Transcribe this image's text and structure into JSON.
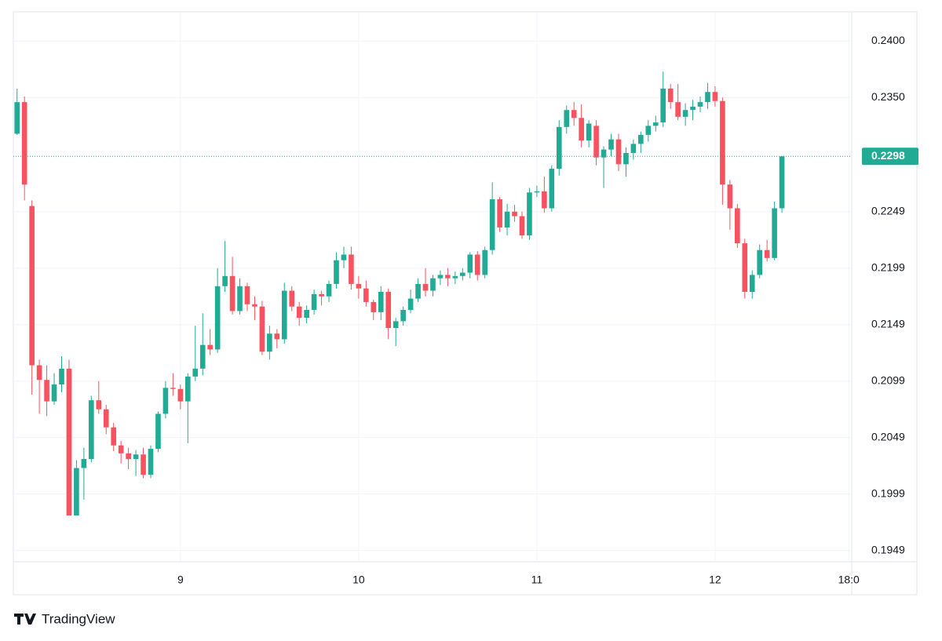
{
  "chart_data": {
    "type": "candlestick",
    "x": [
      2,
      3,
      4,
      5,
      6,
      7,
      8,
      9,
      10,
      11,
      12,
      13,
      14,
      15,
      16,
      17,
      18,
      19,
      20,
      21,
      22,
      23,
      24,
      25,
      26,
      27,
      28,
      29,
      30,
      31,
      32,
      33,
      34,
      35,
      36,
      37,
      38,
      39,
      40,
      41,
      42,
      43,
      44,
      45,
      46,
      47,
      48,
      49,
      50,
      51,
      52,
      53,
      54,
      55,
      56,
      57,
      58,
      59,
      60,
      61,
      62,
      63,
      64,
      65,
      66,
      67,
      68,
      69,
      70,
      71,
      72,
      73,
      74,
      75,
      76,
      77,
      78,
      79,
      80,
      81,
      82,
      83,
      84,
      85,
      86,
      87,
      88,
      89,
      90,
      91,
      92,
      93,
      94,
      95,
      96,
      97,
      98,
      99,
      100,
      101,
      102,
      103,
      104,
      105
    ],
    "open": [
      0.2318,
      0.2346,
      0.2254,
      0.2113,
      0.21,
      0.2081,
      0.2096,
      0.211,
      0.198,
      0.2022,
      0.203,
      0.2082,
      0.2074,
      0.2058,
      0.2042,
      0.2035,
      0.203,
      0.2034,
      0.2016,
      0.2039,
      0.207,
      0.2093,
      0.2092,
      0.2081,
      0.2103,
      0.211,
      0.2131,
      0.2127,
      0.2183,
      0.2192,
      0.2161,
      0.2183,
      0.2167,
      0.2165,
      0.2125,
      0.2141,
      0.2136,
      0.2179,
      0.2165,
      0.2155,
      0.2162,
      0.2176,
      0.2174,
      0.2185,
      0.2206,
      0.2211,
      0.2185,
      0.2181,
      0.2169,
      0.216,
      0.2178,
      0.2146,
      0.2152,
      0.2162,
      0.2172,
      0.2185,
      0.2179,
      0.219,
      0.2193,
      0.219,
      0.2192,
      0.2195,
      0.2211,
      0.2193,
      0.2215,
      0.226,
      0.2235,
      0.2249,
      0.2245,
      0.2228,
      0.2266,
      0.2267,
      0.2252,
      0.2287,
      0.2324,
      0.2339,
      0.2332,
      0.2312,
      0.2325,
      0.2297,
      0.2304,
      0.2313,
      0.2291,
      0.2301,
      0.2309,
      0.2317,
      0.2325,
      0.2328,
      0.2358,
      0.2346,
      0.2333,
      0.2339,
      0.2342,
      0.2346,
      0.2355,
      0.2347,
      0.2273,
      0.2252,
      0.2221,
      0.2178,
      0.2193,
      0.2215,
      0.2208,
      0.2252
    ],
    "high": [
      0.2358,
      0.2351,
      0.2259,
      0.2118,
      0.2113,
      0.2106,
      0.2121,
      0.2118,
      0.2029,
      0.204,
      0.2086,
      0.2099,
      0.2078,
      0.2062,
      0.2046,
      0.204,
      0.2038,
      0.204,
      0.2042,
      0.2072,
      0.2099,
      0.2106,
      0.2096,
      0.2106,
      0.2148,
      0.2159,
      0.2145,
      0.2199,
      0.2223,
      0.2209,
      0.219,
      0.2186,
      0.2174,
      0.217,
      0.2148,
      0.2145,
      0.2186,
      0.2183,
      0.2169,
      0.2166,
      0.218,
      0.2179,
      0.2188,
      0.2213,
      0.2218,
      0.2218,
      0.2192,
      0.2188,
      0.2171,
      0.2183,
      0.2181,
      0.2155,
      0.2165,
      0.218,
      0.219,
      0.2199,
      0.2193,
      0.2197,
      0.2199,
      0.2196,
      0.2199,
      0.2213,
      0.2214,
      0.2218,
      0.2275,
      0.2262,
      0.2256,
      0.2255,
      0.2249,
      0.227,
      0.2272,
      0.228,
      0.229,
      0.233,
      0.2343,
      0.2346,
      0.2344,
      0.233,
      0.233,
      0.2307,
      0.2318,
      0.2318,
      0.2306,
      0.2313,
      0.232,
      0.233,
      0.2334,
      0.2373,
      0.2362,
      0.2362,
      0.2345,
      0.2348,
      0.2351,
      0.2363,
      0.236,
      0.235,
      0.2277,
      0.2256,
      0.2225,
      0.2197,
      0.222,
      0.2224,
      0.2258,
      0.2298
    ],
    "low": [
      0.2317,
      0.2259,
      0.2087,
      0.207,
      0.2068,
      0.2078,
      0.2089,
      0.198,
      0.198,
      0.1994,
      0.2027,
      0.207,
      0.2052,
      0.2037,
      0.2026,
      0.2021,
      0.2015,
      0.2013,
      0.2013,
      0.2036,
      0.2066,
      0.2086,
      0.2074,
      0.2044,
      0.2099,
      0.2104,
      0.2122,
      0.2124,
      0.2178,
      0.2158,
      0.2158,
      0.2161,
      0.2153,
      0.2122,
      0.2118,
      0.2128,
      0.2132,
      0.2161,
      0.2148,
      0.215,
      0.2158,
      0.2166,
      0.2169,
      0.2181,
      0.2199,
      0.218,
      0.2172,
      0.2165,
      0.2153,
      0.2153,
      0.2136,
      0.213,
      0.2148,
      0.2159,
      0.2169,
      0.2174,
      0.2174,
      0.2184,
      0.2183,
      0.2185,
      0.2188,
      0.219,
      0.2188,
      0.219,
      0.2211,
      0.2231,
      0.2228,
      0.224,
      0.2225,
      0.2224,
      0.2262,
      0.2248,
      0.2249,
      0.2281,
      0.2318,
      0.2325,
      0.2306,
      0.2306,
      0.229,
      0.227,
      0.2298,
      0.2285,
      0.228,
      0.2295,
      0.2301,
      0.2311,
      0.232,
      0.2324,
      0.234,
      0.233,
      0.2325,
      0.233,
      0.2337,
      0.234,
      0.2342,
      0.2255,
      0.2233,
      0.2217,
      0.2172,
      0.2172,
      0.219,
      0.2205,
      0.2206,
      0.2248
    ],
    "close": [
      0.2346,
      0.2273,
      0.2113,
      0.21,
      0.2081,
      0.2096,
      0.211,
      0.198,
      0.2022,
      0.203,
      0.2082,
      0.2074,
      0.2058,
      0.2042,
      0.2035,
      0.203,
      0.2034,
      0.2016,
      0.2039,
      0.207,
      0.2093,
      0.2092,
      0.2081,
      0.2103,
      0.211,
      0.2131,
      0.2127,
      0.2183,
      0.2192,
      0.2161,
      0.2183,
      0.2167,
      0.2165,
      0.2125,
      0.2141,
      0.2136,
      0.2179,
      0.2165,
      0.2155,
      0.2162,
      0.2176,
      0.2174,
      0.2185,
      0.2206,
      0.2211,
      0.2185,
      0.2181,
      0.2169,
      0.216,
      0.2178,
      0.2146,
      0.2152,
      0.2162,
      0.2172,
      0.2185,
      0.2179,
      0.219,
      0.2193,
      0.219,
      0.2192,
      0.2195,
      0.2211,
      0.2193,
      0.2215,
      0.226,
      0.2235,
      0.2249,
      0.2245,
      0.2228,
      0.2266,
      0.2267,
      0.2252,
      0.2287,
      0.2324,
      0.2339,
      0.2332,
      0.2312,
      0.2327,
      0.2297,
      0.2304,
      0.2313,
      0.2291,
      0.2301,
      0.2309,
      0.2317,
      0.2325,
      0.2328,
      0.2358,
      0.2346,
      0.2333,
      0.2339,
      0.2342,
      0.2346,
      0.2355,
      0.2347,
      0.2273,
      0.2252,
      0.2221,
      0.2178,
      0.2193,
      0.2215,
      0.2208,
      0.2252,
      0.2298
    ],
    "up_color": "#22ab94",
    "down_color": "#f7525f",
    "xlim": [
      1.5,
      114.4
    ],
    "xticks": [
      {
        "value": 24,
        "label": "9"
      },
      {
        "value": 48,
        "label": "10"
      },
      {
        "value": 72,
        "label": "11"
      },
      {
        "value": 96,
        "label": "12"
      },
      {
        "value": 114,
        "label": "18:0"
      }
    ],
    "ylim": [
      0.1939,
      0.2426
    ],
    "yticks": [
      {
        "value": 0.24,
        "label": "0.2400"
      },
      {
        "value": 0.235,
        "label": "0.2350"
      },
      0.2249,
      0.2199,
      0.2149,
      0.2099,
      0.2049,
      0.1999,
      0.1949
    ],
    "last_price": 0.2298,
    "grid": true,
    "attribution": "TradingView"
  }
}
